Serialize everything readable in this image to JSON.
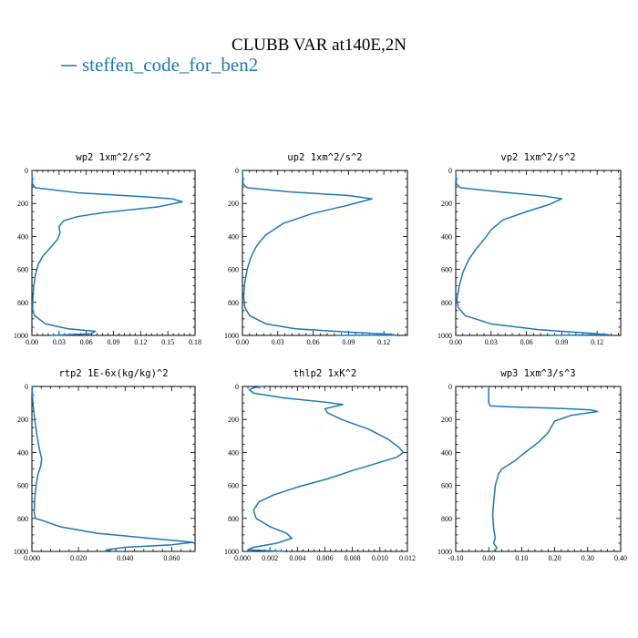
{
  "figure": {
    "title": "CLUBB VAR at140E,2N",
    "legend": [
      {
        "label": "steffen_code_for_ben2",
        "color": "#1f77b4"
      }
    ]
  },
  "chart_data": [
    {
      "type": "line",
      "title": "wp2  1xm^2/s^2",
      "series_name": "steffen_code_for_ben2",
      "color": "#1f77b4",
      "xlim": [
        0,
        0.18
      ],
      "ylim": [
        1000,
        0
      ],
      "xticks": [
        "0.00",
        "0.03",
        "0.06",
        "0.09",
        "0.12",
        "0.15",
        "0.18"
      ],
      "xtick_values": [
        0,
        0.03,
        0.06,
        0.09,
        0.12,
        0.15,
        0.18
      ],
      "yticks": [
        "0",
        "200",
        "400",
        "600",
        "800",
        "1000"
      ],
      "ytick_values": [
        0,
        200,
        400,
        600,
        800,
        1000
      ],
      "points": [
        [
          0.0,
          0
        ],
        [
          0.0005,
          80
        ],
        [
          0.004,
          105
        ],
        [
          0.05,
          135
        ],
        [
          0.12,
          158
        ],
        [
          0.155,
          172
        ],
        [
          0.166,
          190
        ],
        [
          0.14,
          220
        ],
        [
          0.08,
          255
        ],
        [
          0.05,
          280
        ],
        [
          0.035,
          305
        ],
        [
          0.03,
          340
        ],
        [
          0.031,
          380
        ],
        [
          0.028,
          420
        ],
        [
          0.02,
          470
        ],
        [
          0.012,
          520
        ],
        [
          0.007,
          570
        ],
        [
          0.004,
          630
        ],
        [
          0.002,
          700
        ],
        [
          0.001,
          780
        ],
        [
          0.0008,
          850
        ],
        [
          0.003,
          880
        ],
        [
          0.015,
          930
        ],
        [
          0.04,
          960
        ],
        [
          0.07,
          975
        ],
        [
          0.065,
          990
        ],
        [
          0.02,
          1000
        ]
      ]
    },
    {
      "type": "line",
      "title": "up2  1xm^2/s^2",
      "series_name": "steffen_code_for_ben2",
      "color": "#1f77b4",
      "xlim": [
        0,
        0.14
      ],
      "ylim": [
        1000,
        0
      ],
      "xticks": [
        "0.00",
        "0.03",
        "0.06",
        "0.09",
        "0.12"
      ],
      "xtick_values": [
        0,
        0.03,
        0.06,
        0.09,
        0.12
      ],
      "yticks": [
        "0",
        "200",
        "400",
        "600",
        "800",
        "1000"
      ],
      "ytick_values": [
        0,
        200,
        400,
        600,
        800,
        1000
      ],
      "points": [
        [
          0.0,
          0
        ],
        [
          0.0005,
          80
        ],
        [
          0.004,
          105
        ],
        [
          0.04,
          130
        ],
        [
          0.09,
          152
        ],
        [
          0.11,
          172
        ],
        [
          0.09,
          210
        ],
        [
          0.06,
          260
        ],
        [
          0.035,
          320
        ],
        [
          0.02,
          390
        ],
        [
          0.015,
          430
        ],
        [
          0.011,
          470
        ],
        [
          0.007,
          530
        ],
        [
          0.004,
          600
        ],
        [
          0.002,
          680
        ],
        [
          0.001,
          760
        ],
        [
          0.002,
          830
        ],
        [
          0.006,
          880
        ],
        [
          0.02,
          930
        ],
        [
          0.045,
          960
        ],
        [
          0.09,
          980
        ],
        [
          0.125,
          993
        ],
        [
          0.13,
          998
        ],
        [
          0.08,
          1000
        ]
      ]
    },
    {
      "type": "line",
      "title": "vp2  1xm^2/s^2",
      "series_name": "steffen_code_for_ben2",
      "color": "#1f77b4",
      "xlim": [
        0,
        0.14
      ],
      "ylim": [
        1000,
        0
      ],
      "xticks": [
        "0.00",
        "0.03",
        "0.06",
        "0.09",
        "0.12"
      ],
      "xtick_values": [
        0,
        0.03,
        0.06,
        0.09,
        0.12
      ],
      "yticks": [
        "0",
        "200",
        "400",
        "600",
        "800",
        "1000"
      ],
      "ytick_values": [
        0,
        200,
        400,
        600,
        800,
        1000
      ],
      "points": [
        [
          0.0,
          0
        ],
        [
          0.0005,
          80
        ],
        [
          0.004,
          105
        ],
        [
          0.04,
          132
        ],
        [
          0.075,
          155
        ],
        [
          0.09,
          172
        ],
        [
          0.08,
          205
        ],
        [
          0.06,
          250
        ],
        [
          0.04,
          300
        ],
        [
          0.03,
          360
        ],
        [
          0.025,
          410
        ],
        [
          0.018,
          470
        ],
        [
          0.011,
          540
        ],
        [
          0.006,
          620
        ],
        [
          0.003,
          700
        ],
        [
          0.001,
          780
        ],
        [
          0.002,
          830
        ],
        [
          0.008,
          880
        ],
        [
          0.03,
          930
        ],
        [
          0.07,
          965
        ],
        [
          0.11,
          985
        ],
        [
          0.13,
          996
        ],
        [
          0.08,
          1000
        ]
      ]
    },
    {
      "type": "line",
      "title": "rtp2  1E-6x(kg/kg)^2",
      "series_name": "steffen_code_for_ben2",
      "color": "#1f77b4",
      "xlim": [
        0,
        0.07
      ],
      "ylim": [
        1000,
        0
      ],
      "xticks": [
        "0.000",
        "0.020",
        "0.040",
        "0.060"
      ],
      "xtick_values": [
        0,
        0.02,
        0.04,
        0.06
      ],
      "yticks": [
        "0",
        "200",
        "400",
        "600",
        "800",
        "1000"
      ],
      "ytick_values": [
        0,
        200,
        400,
        600,
        800,
        1000
      ],
      "points": [
        [
          0.0001,
          0
        ],
        [
          0.0004,
          100
        ],
        [
          0.0012,
          200
        ],
        [
          0.0022,
          300
        ],
        [
          0.0032,
          380
        ],
        [
          0.0042,
          440
        ],
        [
          0.0038,
          480
        ],
        [
          0.0025,
          540
        ],
        [
          0.0018,
          600
        ],
        [
          0.0012,
          680
        ],
        [
          0.001,
          760
        ],
        [
          0.0015,
          800
        ],
        [
          0.004,
          810
        ],
        [
          0.012,
          850
        ],
        [
          0.028,
          890
        ],
        [
          0.05,
          920
        ],
        [
          0.062,
          935
        ],
        [
          0.069,
          945
        ],
        [
          0.06,
          960
        ],
        [
          0.04,
          975
        ],
        [
          0.032,
          990
        ],
        [
          0.035,
          1000
        ]
      ]
    },
    {
      "type": "line",
      "title": "thlp2  1xK^2",
      "series_name": "steffen_code_for_ben2",
      "color": "#1f77b4",
      "xlim": [
        0,
        0.012
      ],
      "ylim": [
        1000,
        0
      ],
      "xticks": [
        "0.000",
        "0.002",
        "0.004",
        "0.006",
        "0.008",
        "0.010",
        "0.012"
      ],
      "xtick_values": [
        0,
        0.002,
        0.004,
        0.006,
        0.008,
        0.01,
        0.012
      ],
      "yticks": [
        "0",
        "200",
        "400",
        "600",
        "800",
        "1000"
      ],
      "ytick_values": [
        0,
        200,
        400,
        600,
        800,
        1000
      ],
      "points": [
        [
          0.0015,
          0
        ],
        [
          0.0008,
          8
        ],
        [
          0.0005,
          20
        ],
        [
          0.0008,
          40
        ],
        [
          0.003,
          70
        ],
        [
          0.006,
          95
        ],
        [
          0.0073,
          110
        ],
        [
          0.006,
          135
        ],
        [
          0.0062,
          160
        ],
        [
          0.0072,
          200
        ],
        [
          0.0092,
          260
        ],
        [
          0.0106,
          320
        ],
        [
          0.0114,
          370
        ],
        [
          0.0117,
          400
        ],
        [
          0.0112,
          430
        ],
        [
          0.0096,
          470
        ],
        [
          0.008,
          510
        ],
        [
          0.0062,
          560
        ],
        [
          0.004,
          610
        ],
        [
          0.0022,
          660
        ],
        [
          0.0012,
          700
        ],
        [
          0.0008,
          750
        ],
        [
          0.001,
          800
        ],
        [
          0.002,
          850
        ],
        [
          0.0032,
          890
        ],
        [
          0.0036,
          920
        ],
        [
          0.0025,
          950
        ],
        [
          0.0008,
          975
        ],
        [
          0.0004,
          990
        ],
        [
          0.003,
          1000
        ]
      ]
    },
    {
      "type": "line",
      "title": "wp3  1xm^3/s^3",
      "series_name": "steffen_code_for_ben2",
      "color": "#1f77b4",
      "xlim": [
        -0.1,
        0.4
      ],
      "ylim": [
        1000,
        0
      ],
      "xticks": [
        "-0.10",
        "0.00",
        "0.10",
        "0.20",
        "0.30",
        "0.40"
      ],
      "xtick_values": [
        -0.1,
        0,
        0.1,
        0.2,
        0.3,
        0.4
      ],
      "yticks": [
        "0",
        "200",
        "400",
        "600",
        "800",
        "1000"
      ],
      "ytick_values": [
        0,
        200,
        400,
        600,
        800,
        1000
      ],
      "points": [
        [
          0.0,
          0
        ],
        [
          0.0,
          100
        ],
        [
          0.005,
          118
        ],
        [
          0.08,
          125
        ],
        [
          0.2,
          132
        ],
        [
          0.31,
          142
        ],
        [
          0.33,
          152
        ],
        [
          0.25,
          175
        ],
        [
          0.2,
          210
        ],
        [
          0.18,
          280
        ],
        [
          0.15,
          340
        ],
        [
          0.11,
          400
        ],
        [
          0.08,
          450
        ],
        [
          0.04,
          500
        ],
        [
          0.03,
          530
        ],
        [
          0.02,
          600
        ],
        [
          0.015,
          700
        ],
        [
          0.012,
          780
        ],
        [
          0.015,
          860
        ],
        [
          0.02,
          920
        ],
        [
          0.015,
          950
        ],
        [
          0.025,
          980
        ],
        [
          0.015,
          1000
        ]
      ]
    }
  ]
}
